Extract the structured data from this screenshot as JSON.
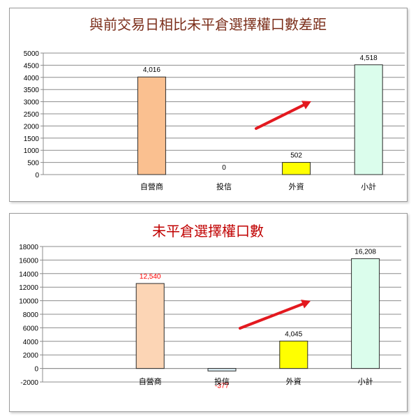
{
  "charts": [
    {
      "chart_data": {
        "type": "bar",
        "title": "與前交易日相比未平倉選擇權口數差距",
        "categories": [
          "",
          "自營商",
          "投信",
          "外資",
          "小計"
        ],
        "values": [
          null,
          4016,
          0,
          502,
          4518
        ],
        "value_labels": [
          "",
          "4,016",
          "0",
          "502",
          "4,518"
        ],
        "bar_colors": [
          "",
          "#FAC090",
          "#D6E3BC",
          "#FFFF00",
          "#DBFDEC"
        ],
        "label_colors": [
          "",
          "#000000",
          "#000000",
          "#000000",
          "#000000"
        ],
        "ylim": [
          0,
          5000
        ],
        "yticks": [
          "0",
          "500",
          "1000",
          "1500",
          "2000",
          "2500",
          "3000",
          "3500",
          "4000",
          "4500",
          "5000"
        ],
        "grid": true,
        "legend": "none",
        "annotation": "red arrow pointing up-right"
      },
      "title_color": "#7B2E1A"
    },
    {
      "chart_data": {
        "type": "bar",
        "title": "未平倉選擇權口數",
        "categories": [
          "",
          "自營商",
          "投信",
          "外資",
          "小計"
        ],
        "values": [
          null,
          12540,
          -377,
          4045,
          16208
        ],
        "value_labels": [
          "",
          "12,540",
          "-377",
          "4,045",
          "16,208"
        ],
        "bar_colors": [
          "",
          "#FCD5B5",
          "#DBEEF4",
          "#FFFF00",
          "#DBFDEC"
        ],
        "label_colors": [
          "",
          "#FF0000",
          "#FF0000",
          "#000000",
          "#000000"
        ],
        "ylim": [
          -2000,
          18000
        ],
        "yticks": [
          "-2000",
          "0",
          "2000",
          "4000",
          "6000",
          "8000",
          "10000",
          "12000",
          "14000",
          "16000",
          "18000"
        ],
        "grid": true,
        "legend": "none",
        "annotation": "red arrow pointing up-right"
      },
      "title_color": "#C00000"
    }
  ]
}
